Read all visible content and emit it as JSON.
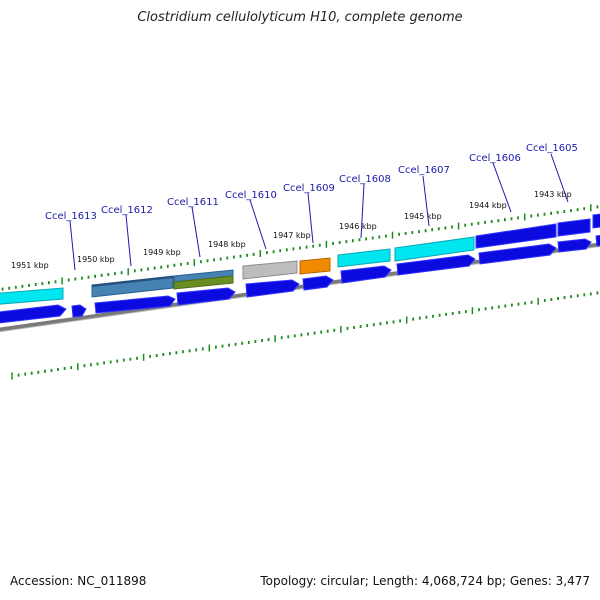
{
  "title": "Clostridium cellulolyticum H10, complete genome",
  "accession": "Accession: NC_011898",
  "summary": "Topology: circular; Length: 4,068,724 bp; Genes: 3,477",
  "colors": {
    "background": "#ffffff",
    "tick": "#1f8a1f",
    "gene_label": "#1a1aa8",
    "backbone": "#7a7a7a",
    "cds_strand": "#0b0be0",
    "cyan": "#00e6f0",
    "steel_blue": "#4682b4",
    "olive": "#6b8e23",
    "gray": "#bdbdbd",
    "orange": "#f28a00",
    "blue": "#0b0be0"
  },
  "kbp_labels": [
    "1951 kbp",
    "1950 kbp",
    "1949 kbp",
    "1948 kbp",
    "1947 kbp",
    "1946 kbp",
    "1945 kbp",
    "1944 kbp",
    "1943 kbp"
  ],
  "gene_labels": [
    "Ccel_1613",
    "Ccel_1612",
    "Ccel_1611",
    "Ccel_1610",
    "Ccel_1609",
    "Ccel_1608",
    "Ccel_1607",
    "Ccel_1606",
    "Ccel_1605"
  ]
}
